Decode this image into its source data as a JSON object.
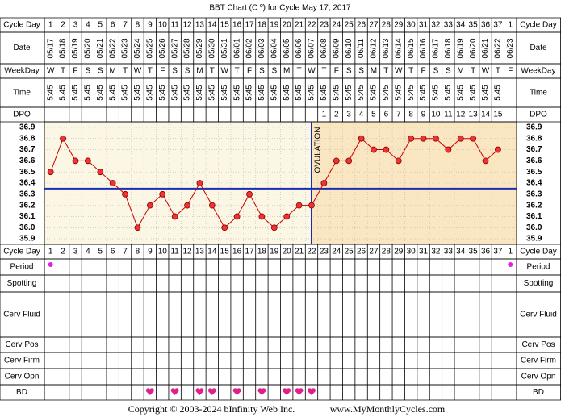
{
  "chart_data": {
    "type": "line",
    "title": "BBT Chart (C º) for Cycle May 17, 2017",
    "row_labels": [
      "Cycle Day",
      "Date",
      "WeekDay",
      "Time",
      "DPO",
      "Cycle Day",
      "Period",
      "Spotting",
      "Cerv Fluid",
      "Cerv Pos",
      "Cerv Firm",
      "Cerv Opn",
      "BD"
    ],
    "cycle_days": [
      1,
      2,
      3,
      4,
      5,
      6,
      7,
      8,
      9,
      10,
      11,
      12,
      13,
      14,
      15,
      16,
      17,
      18,
      19,
      20,
      21,
      22,
      23,
      24,
      25,
      26,
      27,
      28,
      29,
      30,
      31,
      32,
      33,
      34,
      35,
      36,
      37,
      1
    ],
    "dates": [
      "05/17",
      "05/18",
      "05/19",
      "05/20",
      "05/21",
      "05/22",
      "05/23",
      "05/24",
      "05/25",
      "05/26",
      "05/27",
      "05/28",
      "05/29",
      "05/30",
      "05/31",
      "06/01",
      "06/02",
      "06/03",
      "06/04",
      "06/05",
      "06/06",
      "06/07",
      "06/08",
      "06/09",
      "06/10",
      "06/11",
      "06/12",
      "06/13",
      "06/14",
      "06/15",
      "06/16",
      "06/17",
      "06/18",
      "06/19",
      "06/20",
      "06/21",
      "06/22",
      "06/23"
    ],
    "weekdays": [
      "W",
      "T",
      "F",
      "S",
      "S",
      "M",
      "T",
      "W",
      "T",
      "F",
      "S",
      "S",
      "M",
      "T",
      "W",
      "T",
      "F",
      "S",
      "S",
      "M",
      "T",
      "W",
      "T",
      "F",
      "S",
      "S",
      "M",
      "T",
      "W",
      "T",
      "F",
      "S",
      "S",
      "M",
      "T",
      "W",
      "T",
      "F"
    ],
    "times": [
      "5:45",
      "5:45",
      "5:45",
      "5:45",
      "5:45",
      "5:45",
      "5:45",
      "5:45",
      "5:45",
      "5:45",
      "5:45",
      "5:45",
      "5:45",
      "5:45",
      "5:45",
      "5:45",
      "5:45",
      "5:45",
      "5:45",
      "5:45",
      "5:45",
      "5:45",
      "5:45",
      "5:45",
      "5:45",
      "5:45",
      "5:45",
      "5:45",
      "5:45",
      "5:45",
      "5:45",
      "5:45",
      "5:45",
      "5:45",
      "5:45",
      "5:45",
      "5:45",
      null
    ],
    "dpo": [
      null,
      null,
      null,
      null,
      null,
      null,
      null,
      null,
      null,
      null,
      null,
      null,
      null,
      null,
      null,
      null,
      null,
      null,
      null,
      null,
      null,
      null,
      1,
      2,
      3,
      4,
      5,
      6,
      7,
      8,
      9,
      10,
      11,
      12,
      13,
      14,
      15,
      null
    ],
    "values": [
      36.5,
      36.8,
      36.6,
      36.6,
      36.5,
      36.4,
      36.3,
      36.0,
      36.2,
      36.3,
      36.1,
      36.2,
      36.4,
      36.2,
      36.0,
      36.1,
      36.3,
      36.1,
      36.0,
      36.1,
      36.2,
      36.2,
      36.4,
      36.6,
      36.6,
      36.8,
      36.7,
      36.7,
      36.6,
      36.8,
      36.8,
      36.8,
      36.7,
      36.8,
      36.8,
      36.6,
      36.7,
      null
    ],
    "color": "#cc0000",
    "ylim": [
      35.85,
      36.95
    ],
    "yticks": [
      36.9,
      36.8,
      36.7,
      36.6,
      36.5,
      36.4,
      36.3,
      36.2,
      36.1,
      {
        "value": 36.0,
        "label": "36.0"
      },
      35.9
    ],
    "grid": true,
    "coverline": 36.35,
    "ovulation_day": 22,
    "ovulation_label": "OVULATION",
    "period": [
      true,
      null,
      null,
      null,
      null,
      null,
      null,
      null,
      null,
      null,
      null,
      null,
      null,
      null,
      null,
      null,
      null,
      null,
      null,
      null,
      null,
      null,
      null,
      null,
      null,
      null,
      null,
      null,
      null,
      null,
      null,
      null,
      null,
      null,
      null,
      null,
      null,
      true
    ],
    "bd": [
      null,
      null,
      null,
      null,
      null,
      null,
      null,
      null,
      true,
      null,
      true,
      null,
      true,
      true,
      null,
      true,
      null,
      true,
      null,
      true,
      true,
      true,
      null,
      null,
      null,
      null,
      null,
      null,
      null,
      null,
      null,
      null,
      null,
      null,
      null,
      null,
      null,
      null
    ],
    "copyright": "Copyright © 2003-2024 bInfinity Web Inc.",
    "website": "www.MyMonthlyCycles.com"
  }
}
